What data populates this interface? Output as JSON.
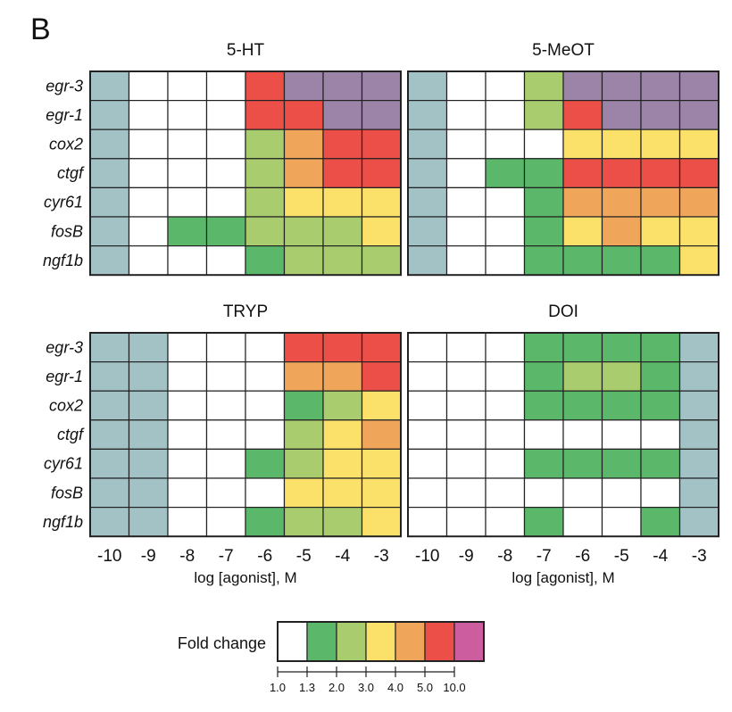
{
  "figure": {
    "panel_letter": "B"
  },
  "legend": {
    "title": "Fold change",
    "ticks": [
      "1.0",
      "1.3",
      "2.0",
      "3.0",
      "4.0",
      "5.0",
      "10.0"
    ],
    "colors": [
      "#ffffff",
      "#5bb86a",
      "#a8cc6e",
      "#fbe06a",
      "#f0a65a",
      "#ec4f48",
      "#cc5ea0"
    ]
  },
  "palette": {
    "B": "#a2c2c6",
    "W": "#ffffff",
    "G": "#5bb86a",
    "L": "#a8cc6e",
    "Y": "#fbe06a",
    "O": "#f0a65a",
    "R": "#ec4f48",
    "P": "#9b84a8"
  },
  "chart_data": [
    {
      "type": "heatmap",
      "title": "5-HT",
      "x": [
        "-10",
        "-9",
        "-8",
        "-7",
        "-6",
        "-5",
        "-4",
        "-3"
      ],
      "y": [
        "egr-3",
        "egr-1",
        "cox2",
        "ctgf",
        "cyr61",
        "fosB",
        "ngf1b"
      ],
      "values": [
        [
          "B",
          "W",
          "W",
          "W",
          "R",
          "P",
          "P",
          "P"
        ],
        [
          "B",
          "W",
          "W",
          "W",
          "R",
          "R",
          "P",
          "P"
        ],
        [
          "B",
          "W",
          "W",
          "W",
          "L",
          "O",
          "R",
          "R"
        ],
        [
          "B",
          "W",
          "W",
          "W",
          "L",
          "O",
          "R",
          "R"
        ],
        [
          "B",
          "W",
          "W",
          "W",
          "L",
          "Y",
          "Y",
          "Y"
        ],
        [
          "B",
          "W",
          "G",
          "G",
          "L",
          "L",
          "L",
          "Y"
        ],
        [
          "B",
          "W",
          "W",
          "W",
          "G",
          "L",
          "L",
          "L"
        ]
      ]
    },
    {
      "type": "heatmap",
      "title": "5-MeOT",
      "x": [
        "-10",
        "-9",
        "-8",
        "-7",
        "-6",
        "-5",
        "-4",
        "-3"
      ],
      "y": [
        "egr-3",
        "egr-1",
        "cox2",
        "ctgf",
        "cyr61",
        "fosB",
        "ngf1b"
      ],
      "values": [
        [
          "B",
          "W",
          "W",
          "L",
          "P",
          "P",
          "P",
          "P"
        ],
        [
          "B",
          "W",
          "W",
          "L",
          "R",
          "P",
          "P",
          "P"
        ],
        [
          "B",
          "W",
          "W",
          "W",
          "Y",
          "Y",
          "Y",
          "Y"
        ],
        [
          "B",
          "W",
          "G",
          "G",
          "R",
          "R",
          "R",
          "R"
        ],
        [
          "B",
          "W",
          "W",
          "G",
          "O",
          "O",
          "O",
          "O"
        ],
        [
          "B",
          "W",
          "W",
          "G",
          "Y",
          "O",
          "Y",
          "Y"
        ],
        [
          "B",
          "W",
          "W",
          "G",
          "G",
          "G",
          "G",
          "Y"
        ]
      ]
    },
    {
      "type": "heatmap",
      "title": "TRYP",
      "x": [
        "-10",
        "-9",
        "-8",
        "-7",
        "-6",
        "-5",
        "-4",
        "-3"
      ],
      "y": [
        "egr-3",
        "egr-1",
        "cox2",
        "ctgf",
        "cyr61",
        "fosB",
        "ngf1b"
      ],
      "xlabel": "log [agonist], M",
      "values": [
        [
          "B",
          "B",
          "W",
          "W",
          "W",
          "R",
          "R",
          "R"
        ],
        [
          "B",
          "B",
          "W",
          "W",
          "W",
          "O",
          "O",
          "R"
        ],
        [
          "B",
          "B",
          "W",
          "W",
          "W",
          "G",
          "L",
          "Y"
        ],
        [
          "B",
          "B",
          "W",
          "W",
          "W",
          "L",
          "Y",
          "O"
        ],
        [
          "B",
          "B",
          "W",
          "W",
          "G",
          "L",
          "Y",
          "Y"
        ],
        [
          "B",
          "B",
          "W",
          "W",
          "W",
          "Y",
          "Y",
          "Y"
        ],
        [
          "B",
          "B",
          "W",
          "W",
          "G",
          "L",
          "L",
          "Y"
        ]
      ]
    },
    {
      "type": "heatmap",
      "title": "DOI",
      "x": [
        "-10",
        "-9",
        "-8",
        "-7",
        "-6",
        "-5",
        "-4",
        "-3"
      ],
      "y": [
        "egr-3",
        "egr-1",
        "cox2",
        "ctgf",
        "cyr61",
        "fosB",
        "ngf1b"
      ],
      "xlabel": "log [agonist], M",
      "values": [
        [
          "W",
          "W",
          "W",
          "G",
          "G",
          "G",
          "G",
          "B"
        ],
        [
          "W",
          "W",
          "W",
          "G",
          "L",
          "L",
          "G",
          "B"
        ],
        [
          "W",
          "W",
          "W",
          "G",
          "G",
          "G",
          "G",
          "B"
        ],
        [
          "W",
          "W",
          "W",
          "W",
          "W",
          "W",
          "W",
          "B"
        ],
        [
          "W",
          "W",
          "W",
          "G",
          "G",
          "G",
          "G",
          "B"
        ],
        [
          "W",
          "W",
          "W",
          "W",
          "W",
          "W",
          "W",
          "B"
        ],
        [
          "W",
          "W",
          "W",
          "G",
          "W",
          "W",
          "G",
          "B"
        ]
      ]
    }
  ]
}
